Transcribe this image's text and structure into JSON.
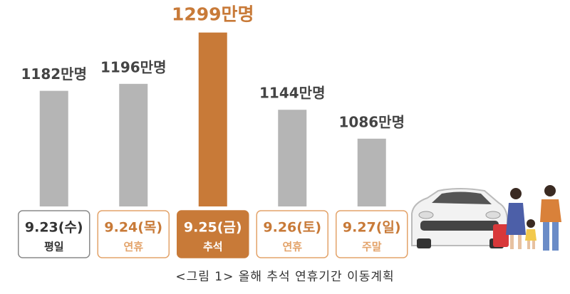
{
  "chart_data": {
    "type": "bar",
    "categories": [
      "9.23(수)",
      "9.24(목)",
      "9.25(금)",
      "9.26(토)",
      "9.27(일)"
    ],
    "sublabels": [
      "평일",
      "연휴",
      "추석",
      "연휴",
      "주말"
    ],
    "values": [
      1182,
      1196,
      1299,
      1144,
      1086
    ],
    "value_labels": [
      "1182만명",
      "1196만명",
      "1299만명",
      "1144만명",
      "1086만명"
    ],
    "colors": [
      "#b5b5b5",
      "#b5b5b5",
      "#c87a38",
      "#b5b5b5",
      "#b5b5b5"
    ],
    "box_colors": [
      "#8a8a8a",
      "#e3a36a",
      "#c87a38",
      "#e3a36a",
      "#e3a36a"
    ],
    "highlight": 2,
    "ylim": [
      950,
      1300
    ],
    "caption": "<그림 1> 올해 추석 연휴기간 이동계획"
  }
}
